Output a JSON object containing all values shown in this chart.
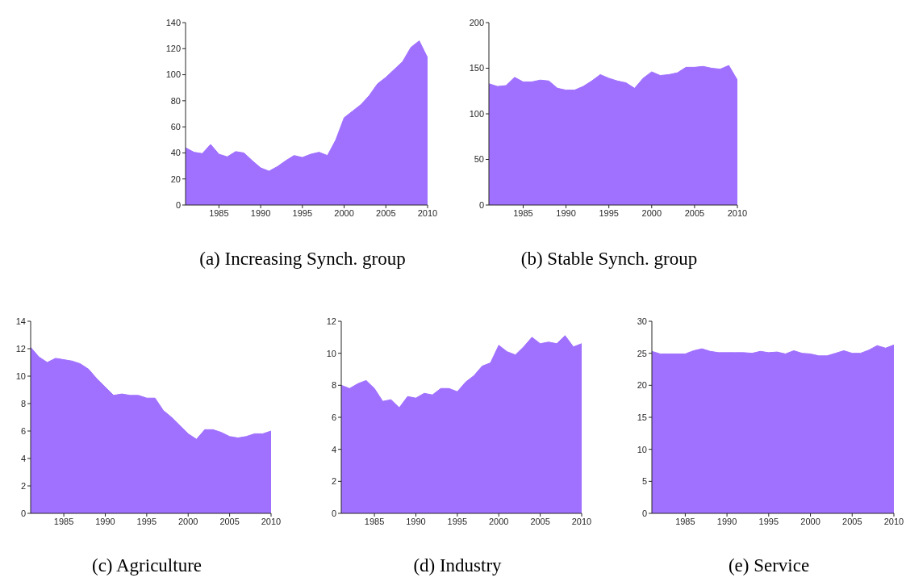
{
  "chart_data": [
    {
      "type": "area",
      "title": "(a) Increasing Synch. group",
      "x": [
        1981,
        1982,
        1983,
        1984,
        1985,
        1986,
        1987,
        1988,
        1989,
        1990,
        1991,
        1992,
        1993,
        1994,
        1995,
        1996,
        1997,
        1998,
        1999,
        2000,
        2001,
        2002,
        2003,
        2004,
        2005,
        2006,
        2007,
        2008,
        2009,
        2010
      ],
      "series": [
        {
          "color": "#a070ff",
          "values": [
            44,
            40.5,
            39.5,
            46.5,
            39,
            37,
            41,
            40,
            34,
            28.5,
            26,
            29.5,
            34,
            38,
            36.5,
            39,
            40.5,
            38,
            50,
            67,
            72,
            77,
            84,
            93,
            98,
            104,
            110,
            121,
            126,
            113
          ]
        }
      ],
      "xlim": [
        1981,
        2010
      ],
      "xticks": [
        1985,
        1990,
        1995,
        2000,
        2005,
        2010
      ],
      "ylim": [
        0,
        140
      ],
      "yticks": [
        0,
        20,
        40,
        60,
        80,
        100,
        120,
        140
      ],
      "grid": false
    },
    {
      "type": "area",
      "title": "(b) Stable Synch. group",
      "x": [
        1981,
        1982,
        1983,
        1984,
        1985,
        1986,
        1987,
        1988,
        1989,
        1990,
        1991,
        1992,
        1993,
        1994,
        1995,
        1996,
        1997,
        1998,
        1999,
        2000,
        2001,
        2002,
        2003,
        2004,
        2005,
        2006,
        2007,
        2008,
        2009,
        2010
      ],
      "series": [
        {
          "color": "#a070ff",
          "values": [
            133,
            130,
            131,
            140,
            135,
            135,
            137,
            136,
            128,
            126,
            126,
            130,
            136,
            143,
            139,
            136,
            134,
            128,
            139,
            146,
            142,
            143,
            145,
            151,
            151,
            152,
            150,
            149,
            153,
            137
          ]
        }
      ],
      "xlim": [
        1981,
        2010
      ],
      "xticks": [
        1985,
        1990,
        1995,
        2000,
        2005,
        2010
      ],
      "ylim": [
        0,
        200
      ],
      "yticks": [
        0,
        50,
        100,
        150,
        200
      ],
      "grid": false
    },
    {
      "type": "area",
      "title": "(c) Agriculture",
      "x": [
        1981,
        1982,
        1983,
        1984,
        1985,
        1986,
        1987,
        1988,
        1989,
        1990,
        1991,
        1992,
        1993,
        1994,
        1995,
        1996,
        1997,
        1998,
        1999,
        2000,
        2001,
        2002,
        2003,
        2004,
        2005,
        2006,
        2007,
        2008,
        2009,
        2010
      ],
      "series": [
        {
          "color": "#a070ff",
          "values": [
            12.1,
            11.4,
            11.0,
            11.3,
            11.2,
            11.1,
            10.9,
            10.5,
            9.8,
            9.2,
            8.6,
            8.7,
            8.6,
            8.6,
            8.4,
            8.4,
            7.5,
            7.0,
            6.4,
            5.8,
            5.4,
            6.1,
            6.1,
            5.9,
            5.6,
            5.5,
            5.6,
            5.8,
            5.8,
            6.0
          ]
        }
      ],
      "xlim": [
        1981,
        2010
      ],
      "xticks": [
        1985,
        1990,
        1995,
        2000,
        2005,
        2010
      ],
      "ylim": [
        0,
        14
      ],
      "yticks": [
        0,
        2,
        4,
        6,
        8,
        10,
        12,
        14
      ],
      "grid": false
    },
    {
      "type": "area",
      "title": "(d) Industry",
      "x": [
        1981,
        1982,
        1983,
        1984,
        1985,
        1986,
        1987,
        1988,
        1989,
        1990,
        1991,
        1992,
        1993,
        1994,
        1995,
        1996,
        1997,
        1998,
        1999,
        2000,
        2001,
        2002,
        2003,
        2004,
        2005,
        2006,
        2007,
        2008,
        2009,
        2010
      ],
      "series": [
        {
          "color": "#a070ff",
          "values": [
            8.0,
            7.8,
            8.1,
            8.3,
            7.8,
            7.0,
            7.1,
            6.6,
            7.3,
            7.2,
            7.5,
            7.4,
            7.8,
            7.8,
            7.6,
            8.2,
            8.6,
            9.2,
            9.4,
            10.5,
            10.1,
            9.9,
            10.4,
            11.0,
            10.6,
            10.7,
            10.6,
            11.1,
            10.4,
            10.6
          ]
        }
      ],
      "xlim": [
        1981,
        2010
      ],
      "xticks": [
        1985,
        1990,
        1995,
        2000,
        2005,
        2010
      ],
      "ylim": [
        0,
        12
      ],
      "yticks": [
        0,
        2,
        4,
        6,
        8,
        10,
        12
      ],
      "grid": false
    },
    {
      "type": "area",
      "title": "(e) Service",
      "x": [
        1981,
        1982,
        1983,
        1984,
        1985,
        1986,
        1987,
        1988,
        1989,
        1990,
        1991,
        1992,
        1993,
        1994,
        1995,
        1996,
        1997,
        1998,
        1999,
        2000,
        2001,
        2002,
        2003,
        2004,
        2005,
        2006,
        2007,
        2008,
        2009,
        2010
      ],
      "series": [
        {
          "color": "#a070ff",
          "values": [
            25.3,
            24.9,
            24.9,
            24.9,
            24.9,
            25.4,
            25.7,
            25.3,
            25.1,
            25.1,
            25.1,
            25.1,
            25.0,
            25.3,
            25.1,
            25.2,
            24.9,
            25.4,
            25.0,
            24.9,
            24.6,
            24.6,
            25.0,
            25.4,
            25.0,
            25.0,
            25.5,
            26.2,
            25.8,
            26.3
          ]
        }
      ],
      "xlim": [
        1981,
        2010
      ],
      "xticks": [
        1985,
        1990,
        1995,
        2000,
        2005,
        2010
      ],
      "ylim": [
        0,
        30
      ],
      "yticks": [
        0,
        5,
        10,
        15,
        20,
        25,
        30
      ],
      "grid": false
    }
  ]
}
